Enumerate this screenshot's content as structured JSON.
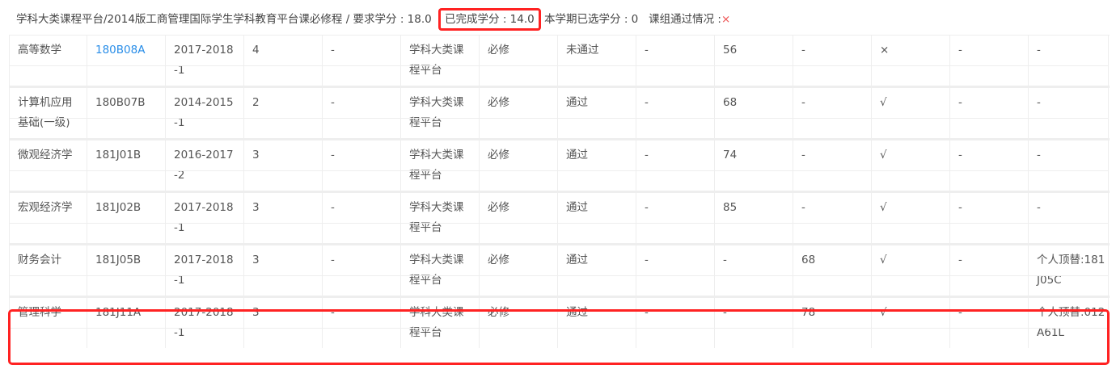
{
  "header": {
    "path": "学科大类课程平台/2014版工商管理国际学生学科教育平台课必修程 / 要求学分 : 18.0",
    "completed": "已完成学分 : 14.0",
    "term_selected": "本学期已选学分 : 0",
    "group_status_label": "课组通过情况 :",
    "group_status_value": "×"
  },
  "rows": [
    {
      "name": "高等数学",
      "code": "180B08A",
      "term": "2017-2018-1",
      "credit": "4",
      "c5": "-",
      "category": "学科大类课程平台",
      "type": "必修",
      "status": "未通过",
      "c9": "-",
      "c10": "56",
      "c11": "-",
      "pass": "×",
      "c13": "-",
      "c14": "-",
      "code_is_link": true
    },
    {
      "name": "计算机应用基础(一级)",
      "code": "180B07B",
      "term": "2014-2015-1",
      "credit": "2",
      "c5": "-",
      "category": "学科大类课程平台",
      "type": "必修",
      "status": "通过",
      "c9": "-",
      "c10": "68",
      "c11": "-",
      "pass": "√",
      "c13": "-",
      "c14": "-"
    },
    {
      "name": "微观经济学",
      "code": "181J01B",
      "term": "2016-2017-2",
      "credit": "3",
      "c5": "-",
      "category": "学科大类课程平台",
      "type": "必修",
      "status": "通过",
      "c9": "-",
      "c10": "74",
      "c11": "-",
      "pass": "√",
      "c13": "-",
      "c14": "-"
    },
    {
      "name": "宏观经济学",
      "code": "181J02B",
      "term": "2017-2018-1",
      "credit": "3",
      "c5": "-",
      "category": "学科大类课程平台",
      "type": "必修",
      "status": "通过",
      "c9": "-",
      "c10": "85",
      "c11": "-",
      "pass": "√",
      "c13": "-",
      "c14": "-"
    },
    {
      "name": "财务会计",
      "code": "181J05B",
      "term": "2017-2018-1",
      "credit": "3",
      "c5": "-",
      "category": "学科大类课程平台",
      "type": "必修",
      "status": "通过",
      "c9": "-",
      "c10": "-",
      "c11": "68",
      "pass": "√",
      "c13": "-",
      "c14": "个人顶替:181J05C"
    },
    {
      "name": "管理科学",
      "code": "181J11A",
      "term": "2017-2018-1",
      "credit": "3",
      "c5": "-",
      "category": "学科大类课程平台",
      "type": "必修",
      "status": "通过",
      "c9": "-",
      "c10": "-",
      "c11": "78",
      "pass": "√",
      "c13": "-",
      "c14": "个人顶替:012A61L"
    }
  ],
  "colors": {
    "link": "#2a8ee8",
    "highlight": "#ff2222",
    "fail": "#e55555"
  }
}
